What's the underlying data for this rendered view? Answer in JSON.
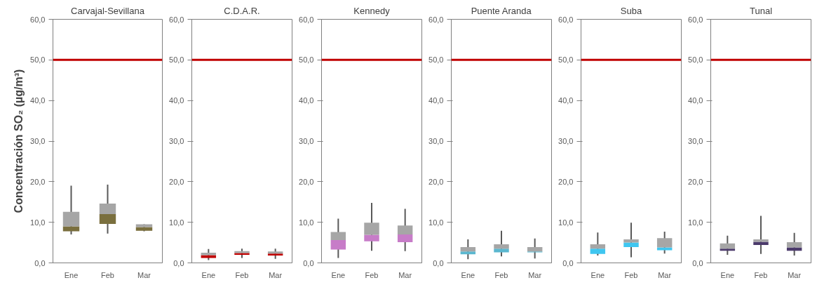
{
  "chart_data": [
    {
      "type": "box",
      "title": "Carvajal-Sevillana",
      "ylabel": "Concentración SO₂ (µg/m³)",
      "categories": [
        "Ene",
        "Feb",
        "Mar"
      ],
      "color": "#a6a6a6",
      "ylim": [
        0,
        60
      ],
      "yticks": [
        {
          "value": 0,
          "label": "0,0"
        },
        {
          "value": 10,
          "label": "10,0"
        },
        {
          "value": 20,
          "label": "20,0"
        },
        {
          "value": 30,
          "label": "30,0"
        },
        {
          "value": 40,
          "label": "40,0"
        },
        {
          "value": 50,
          "label": "50,0"
        },
        {
          "value": 60,
          "label": "60,0"
        }
      ],
      "grid": false,
      "ref_lines": [
        {
          "axis": "y",
          "value": 50,
          "color": "#c00000"
        }
      ],
      "series": [
        {
          "color": "#7a6f3e",
          "boxes": [
            {
              "low": 7,
              "q1": 7.8,
              "median": 9,
              "q3": 12.6,
              "high": 19
            },
            {
              "low": 7.2,
              "q1": 9.6,
              "median": 12,
              "q3": 14.6,
              "high": 19.3
            },
            {
              "low": 7.8,
              "q1": 7.9,
              "median": 8.8,
              "q3": 9.5,
              "high": 9.5
            }
          ]
        }
      ]
    },
    {
      "type": "box",
      "title": "C.D.A.R.",
      "categories": [
        "Ene",
        "Feb",
        "Mar"
      ],
      "color": "#a6a6a6",
      "ylim": [
        0,
        60
      ],
      "yticks": [
        {
          "value": 0,
          "label": "0,0"
        },
        {
          "value": 10,
          "label": "10,0"
        },
        {
          "value": 20,
          "label": "20,0"
        },
        {
          "value": 30,
          "label": "30,0"
        },
        {
          "value": 40,
          "label": "40,0"
        },
        {
          "value": 50,
          "label": "50,0"
        },
        {
          "value": 60,
          "label": "60,0"
        }
      ],
      "grid": false,
      "ref_lines": [
        {
          "axis": "y",
          "value": 50,
          "color": "#c00000"
        }
      ],
      "series": [
        {
          "color": "#c00000",
          "boxes": [
            {
              "low": 0.7,
              "q1": 1.2,
              "median": 1.9,
              "q3": 2.5,
              "high": 3.4
            },
            {
              "low": 1.2,
              "q1": 2.0,
              "median": 2.4,
              "q3": 2.9,
              "high": 3.5
            },
            {
              "low": 1.0,
              "q1": 1.8,
              "median": 2.3,
              "q3": 2.8,
              "high": 3.5
            }
          ]
        }
      ]
    },
    {
      "type": "box",
      "title": "Kennedy",
      "categories": [
        "Ene",
        "Feb",
        "Mar"
      ],
      "color": "#a6a6a6",
      "ylim": [
        0,
        60
      ],
      "yticks": [
        {
          "value": 0,
          "label": "0,0"
        },
        {
          "value": 10,
          "label": "10,0"
        },
        {
          "value": 20,
          "label": "20,0"
        },
        {
          "value": 30,
          "label": "30,0"
        },
        {
          "value": 40,
          "label": "40,0"
        },
        {
          "value": 50,
          "label": "50,0"
        },
        {
          "value": 60,
          "label": "60,0"
        }
      ],
      "grid": false,
      "ref_lines": [
        {
          "axis": "y",
          "value": 50,
          "color": "#c00000"
        }
      ],
      "series": [
        {
          "color": "#c77cc8",
          "boxes": [
            {
              "low": 1.2,
              "q1": 3.3,
              "median": 5.6,
              "q3": 7.6,
              "high": 10.9
            },
            {
              "low": 3.0,
              "q1": 5.3,
              "median": 6.9,
              "q3": 9.9,
              "high": 14.8
            },
            {
              "low": 2.9,
              "q1": 5.1,
              "median": 7.0,
              "q3": 9.2,
              "high": 13.3
            }
          ]
        }
      ]
    },
    {
      "type": "box",
      "title": "Puente Aranda",
      "categories": [
        "Ene",
        "Feb",
        "Mar"
      ],
      "color": "#a6a6a6",
      "ylim": [
        0,
        60
      ],
      "yticks": [
        {
          "value": 0,
          "label": "0,0"
        },
        {
          "value": 10,
          "label": "10,0"
        },
        {
          "value": 20,
          "label": "20,0"
        },
        {
          "value": 30,
          "label": "30,0"
        },
        {
          "value": 40,
          "label": "40,0"
        },
        {
          "value": 50,
          "label": "50,0"
        },
        {
          "value": 60,
          "label": "60,0"
        }
      ],
      "grid": false,
      "ref_lines": [
        {
          "axis": "y",
          "value": 50,
          "color": "#c00000"
        }
      ],
      "series": [
        {
          "color": "#5bb7cf",
          "boxes": [
            {
              "low": 0.9,
              "q1": 2.1,
              "median": 2.8,
              "q3": 3.9,
              "high": 5.8
            },
            {
              "low": 1.6,
              "q1": 2.6,
              "median": 3.5,
              "q3": 4.6,
              "high": 7.9
            },
            {
              "low": 1.1,
              "q1": 2.6,
              "median": 2.8,
              "q3": 3.9,
              "high": 6.0
            }
          ]
        }
      ]
    },
    {
      "type": "box",
      "title": "Suba",
      "categories": [
        "Ene",
        "Feb",
        "Mar"
      ],
      "color": "#a6a6a6",
      "ylim": [
        0,
        60
      ],
      "yticks": [
        {
          "value": 0,
          "label": "0,0"
        },
        {
          "value": 10,
          "label": "10,0"
        },
        {
          "value": 20,
          "label": "20,0"
        },
        {
          "value": 30,
          "label": "30,0"
        },
        {
          "value": 40,
          "label": "40,0"
        },
        {
          "value": 50,
          "label": "50,0"
        },
        {
          "value": 60,
          "label": "60,0"
        }
      ],
      "grid": false,
      "ref_lines": [
        {
          "axis": "y",
          "value": 50,
          "color": "#c00000"
        }
      ],
      "series": [
        {
          "color": "#3fc6f0",
          "boxes": [
            {
              "low": 1.8,
              "q1": 2.2,
              "median": 3.5,
              "q3": 4.6,
              "high": 7.5
            },
            {
              "low": 1.4,
              "q1": 3.9,
              "median": 5.0,
              "q3": 5.8,
              "high": 9.9
            },
            {
              "low": 2.3,
              "q1": 3.1,
              "median": 3.8,
              "q3": 6.1,
              "high": 7.7
            }
          ]
        }
      ]
    },
    {
      "type": "box",
      "title": "Tunal",
      "categories": [
        "Ene",
        "Feb",
        "Mar"
      ],
      "color": "#a6a6a6",
      "ylim": [
        0,
        60
      ],
      "yticks": [
        {
          "value": 0,
          "label": "0,0"
        },
        {
          "value": 10,
          "label": "10,0"
        },
        {
          "value": 20,
          "label": "20,0"
        },
        {
          "value": 30,
          "label": "30,0"
        },
        {
          "value": 40,
          "label": "40,0"
        },
        {
          "value": 50,
          "label": "50,0"
        },
        {
          "value": 60,
          "label": "60,0"
        }
      ],
      "grid": false,
      "ref_lines": [
        {
          "axis": "y",
          "value": 50,
          "color": "#c00000"
        }
      ],
      "series": [
        {
          "color": "#4b3a6b",
          "boxes": [
            {
              "low": 2.0,
              "q1": 3.0,
              "median": 3.5,
              "q3": 4.8,
              "high": 6.7
            },
            {
              "low": 2.2,
              "q1": 4.4,
              "median": 5.2,
              "q3": 5.8,
              "high": 11.6
            },
            {
              "low": 1.8,
              "q1": 3.0,
              "median": 3.8,
              "q3": 5.1,
              "high": 7.4
            }
          ]
        }
      ]
    }
  ]
}
